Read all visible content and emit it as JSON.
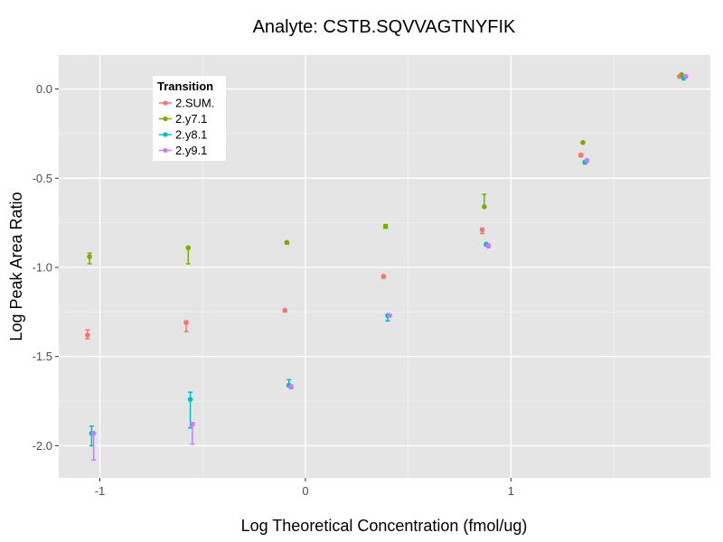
{
  "chart_data": {
    "type": "scatter",
    "title": "Analyte: CSTB.SQVVAGTNYFIK",
    "xlabel": "Log Theoretical Concentration (fmol/ug)",
    "ylabel": "Log Peak Area Ratio",
    "xlim": [
      -1.2,
      1.97
    ],
    "ylim": [
      -2.18,
      0.19
    ],
    "x_ticks": [
      -1,
      0,
      1
    ],
    "x_tick_labels": [
      "-1",
      "0",
      "1"
    ],
    "y_ticks": [
      0.0,
      -0.5,
      -1.0,
      -1.5,
      -2.0
    ],
    "y_tick_labels": [
      "0.0",
      "-0.5",
      "-1.0",
      "-1.5",
      "-2.0"
    ],
    "grid": true,
    "legend": {
      "title": "Transition",
      "position": "top-left"
    },
    "series": [
      {
        "name": "2.SUM.",
        "color": "#F8766D",
        "points": [
          {
            "x": -1.06,
            "y": -1.38,
            "ymin": -1.4,
            "ymax": -1.35
          },
          {
            "x": -0.58,
            "y": -1.31,
            "ymin": -1.36,
            "ymax": -1.3
          },
          {
            "x": -0.1,
            "y": -1.24,
            "ymin": -1.25,
            "ymax": -1.24
          },
          {
            "x": 0.38,
            "y": -1.05,
            "ymin": -1.06,
            "ymax": -1.05
          },
          {
            "x": 0.86,
            "y": -0.79,
            "ymin": -0.81,
            "ymax": -0.78
          },
          {
            "x": 1.34,
            "y": -0.37,
            "ymin": -0.38,
            "ymax": -0.37
          },
          {
            "x": 1.82,
            "y": 0.07,
            "ymin": 0.07,
            "ymax": 0.07
          }
        ]
      },
      {
        "name": "2.y7.1",
        "color": "#7CAE00",
        "points": [
          {
            "x": -1.05,
            "y": -0.94,
            "ymin": -0.98,
            "ymax": -0.92
          },
          {
            "x": -0.57,
            "y": -0.89,
            "ymin": -0.98,
            "ymax": -0.89
          },
          {
            "x": -0.09,
            "y": -0.86,
            "ymin": -0.87,
            "ymax": -0.86
          },
          {
            "x": 0.39,
            "y": -0.77,
            "ymin": -0.78,
            "ymax": -0.76
          },
          {
            "x": 0.87,
            "y": -0.66,
            "ymin": -0.66,
            "ymax": -0.59
          },
          {
            "x": 1.35,
            "y": -0.3,
            "ymin": -0.3,
            "ymax": -0.3
          },
          {
            "x": 1.83,
            "y": 0.08,
            "ymin": 0.08,
            "ymax": 0.08
          }
        ]
      },
      {
        "name": "2.y8.1",
        "color": "#00BFC4",
        "points": [
          {
            "x": -1.04,
            "y": -1.93,
            "ymin": -2.0,
            "ymax": -1.89
          },
          {
            "x": -0.56,
            "y": -1.74,
            "ymin": -1.9,
            "ymax": -1.7
          },
          {
            "x": -0.08,
            "y": -1.66,
            "ymin": -1.67,
            "ymax": -1.63
          },
          {
            "x": 0.4,
            "y": -1.27,
            "ymin": -1.3,
            "ymax": -1.27
          },
          {
            "x": 0.88,
            "y": -0.87,
            "ymin": -0.88,
            "ymax": -0.87
          },
          {
            "x": 1.36,
            "y": -0.41,
            "ymin": -0.42,
            "ymax": -0.41
          },
          {
            "x": 1.84,
            "y": 0.06,
            "ymin": 0.06,
            "ymax": 0.06
          }
        ]
      },
      {
        "name": "2.y9.1",
        "color": "#C77CFF",
        "points": [
          {
            "x": -1.03,
            "y": -1.93,
            "ymin": -2.08,
            "ymax": -1.93
          },
          {
            "x": -0.55,
            "y": -1.88,
            "ymin": -1.99,
            "ymax": -1.87
          },
          {
            "x": -0.07,
            "y": -1.67,
            "ymin": -1.68,
            "ymax": -1.66
          },
          {
            "x": 0.41,
            "y": -1.27,
            "ymin": -1.27,
            "ymax": -1.27
          },
          {
            "x": 0.89,
            "y": -0.88,
            "ymin": -0.89,
            "ymax": -0.87
          },
          {
            "x": 1.37,
            "y": -0.4,
            "ymin": -0.41,
            "ymax": -0.4
          },
          {
            "x": 1.85,
            "y": 0.07,
            "ymin": 0.07,
            "ymax": 0.07
          }
        ]
      }
    ]
  }
}
